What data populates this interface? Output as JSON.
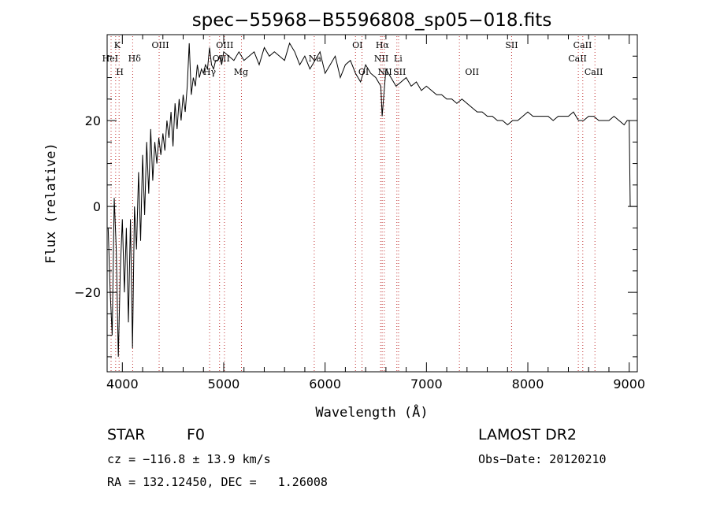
{
  "chart_data": {
    "type": "line",
    "title": "spec−55968−B5596808_sp05−018.fits",
    "xlabel": "Wavelength (Å)",
    "ylabel": "Flux (relative)",
    "xlim": [
      3850,
      9080
    ],
    "ylim": [
      -38.5,
      40
    ],
    "xticks": [
      4000,
      5000,
      6000,
      7000,
      8000,
      9000
    ],
    "yticks": [
      -20,
      0,
      20
    ],
    "ytick_labels": [
      "−20",
      "0",
      "20"
    ],
    "grid": false,
    "series": [
      {
        "x": [
          3860,
          3880,
          3900,
          3920,
          3940,
          3960,
          3980,
          4000,
          4020,
          4040,
          4060,
          4080,
          4100,
          4120,
          4140,
          4160,
          4180,
          4200,
          4220,
          4240,
          4260,
          4280,
          4300,
          4320,
          4340,
          4360,
          4380,
          4400,
          4420,
          4440,
          4460,
          4480,
          4500,
          4520,
          4540,
          4560,
          4580,
          4600,
          4620,
          4640,
          4660,
          4680,
          4700,
          4720,
          4740,
          4760,
          4780,
          4800,
          4820,
          4840,
          4860,
          4880,
          4900,
          4920,
          4940,
          4960,
          4980,
          5000,
          5050,
          5100,
          5150,
          5200,
          5250,
          5300,
          5350,
          5400,
          5450,
          5500,
          5550,
          5600,
          5650,
          5700,
          5750,
          5800,
          5850,
          5900,
          5950,
          6000,
          6050,
          6100,
          6150,
          6200,
          6250,
          6300,
          6350,
          6400,
          6450,
          6500,
          6550,
          6563,
          6600,
          6650,
          6700,
          6750,
          6800,
          6850,
          6900,
          6950,
          7000,
          7050,
          7100,
          7150,
          7200,
          7250,
          7300,
          7350,
          7400,
          7450,
          7500,
          7550,
          7600,
          7650,
          7700,
          7750,
          7800,
          7850,
          7900,
          7950,
          8000,
          8050,
          8100,
          8150,
          8200,
          8250,
          8300,
          8350,
          8400,
          8450,
          8500,
          8550,
          8600,
          8650,
          8700,
          8750,
          8800,
          8850,
          8900,
          8950,
          8980,
          9000,
          9010,
          9010,
          9080
        ],
        "y": [
          -5,
          -20,
          -30,
          2,
          -10,
          -35,
          -15,
          -3,
          -20,
          -5,
          -27,
          -3,
          -33,
          0,
          -10,
          8,
          -8,
          12,
          -2,
          15,
          3,
          18,
          6,
          15,
          10,
          16,
          12,
          17,
          13,
          20,
          16,
          22,
          14,
          24,
          18,
          25,
          20,
          26,
          22,
          28,
          38,
          26,
          30,
          28,
          33,
          30,
          32,
          31,
          33,
          32,
          37,
          33,
          32,
          34,
          34,
          35,
          33,
          36,
          35,
          34,
          36,
          34,
          35,
          36,
          33,
          37,
          35,
          36,
          35,
          34,
          38,
          36,
          33,
          35,
          32,
          34,
          36,
          31,
          33,
          35,
          30,
          33,
          34,
          31,
          29,
          33,
          31,
          30,
          28,
          21,
          32,
          30,
          28,
          29,
          30,
          28,
          29,
          27,
          28,
          27,
          26,
          26,
          25,
          25,
          24,
          25,
          24,
          23,
          22,
          22,
          21,
          21,
          20,
          20,
          19,
          20,
          20,
          21,
          22,
          21,
          21,
          21,
          21,
          20,
          21,
          21,
          21,
          22,
          20,
          20,
          21,
          21,
          20,
          20,
          20,
          21,
          20,
          19,
          20,
          20,
          0,
          0,
          0
        ]
      }
    ],
    "lines": [
      {
        "label": "K",
        "x": 3934,
        "row": 0,
        "ltx": 3950
      },
      {
        "label": "HeI",
        "x": 3889,
        "row": 1,
        "ltx": 3880
      },
      {
        "label": "H",
        "x": 3968,
        "row": 2,
        "ltx": 3975
      },
      {
        "label": "Hδ",
        "x": 4102,
        "row": 1,
        "ltx": 4120
      },
      {
        "label": "OIII",
        "x": 4363,
        "row": 0,
        "ltx": 4375
      },
      {
        "label": "Hγ",
        "x": 4861,
        "row": 2,
        "ltx": 4860
      },
      {
        "label": "OIII",
        "x": 4959,
        "row": 1,
        "ltx": 4975
      },
      {
        "label": "OIII",
        "x": 5007,
        "row": 0,
        "ltx": 5010
      },
      {
        "label": "Mg",
        "x": 5175,
        "row": 2,
        "ltx": 5170
      },
      {
        "label": "Na",
        "x": 5893,
        "row": 1,
        "ltx": 5900
      },
      {
        "label": "OI",
        "x": 6300,
        "row": 0,
        "ltx": 6320
      },
      {
        "label": "OI",
        "x": 6364,
        "row": 2,
        "ltx": 6380
      },
      {
        "label": "Hα",
        "x": 6563,
        "row": 0,
        "ltx": 6565
      },
      {
        "label": "NII",
        "x": 6548,
        "row": 1,
        "ltx": 6555
      },
      {
        "label": "NII",
        "x": 6584,
        "row": 2,
        "ltx": 6590
      },
      {
        "label": "Li",
        "x": 6708,
        "row": 1,
        "ltx": 6720
      },
      {
        "label": "SII",
        "x": 6725,
        "row": 2,
        "ltx": 6735
      },
      {
        "label": "OII",
        "x": 7325,
        "row": 2,
        "ltx": 7450
      },
      {
        "label": "SII",
        "x": 7840,
        "row": 0,
        "ltx": 7840
      },
      {
        "label": "CaII",
        "x": 8498,
        "row": 1,
        "ltx": 8490
      },
      {
        "label": "CaII",
        "x": 8542,
        "row": 0,
        "ltx": 8540
      },
      {
        "label": "CaII",
        "x": 8662,
        "row": 2,
        "ltx": 8650
      }
    ]
  },
  "info": {
    "class": "STAR",
    "subclass": "F0",
    "survey": "LAMOST DR2",
    "cz": "cz = −116.8 ± 13.9 km/s",
    "obs_date": "Obs−Date: 20120210",
    "coords": "RA = 132.12450, DEC =   1.26008"
  }
}
